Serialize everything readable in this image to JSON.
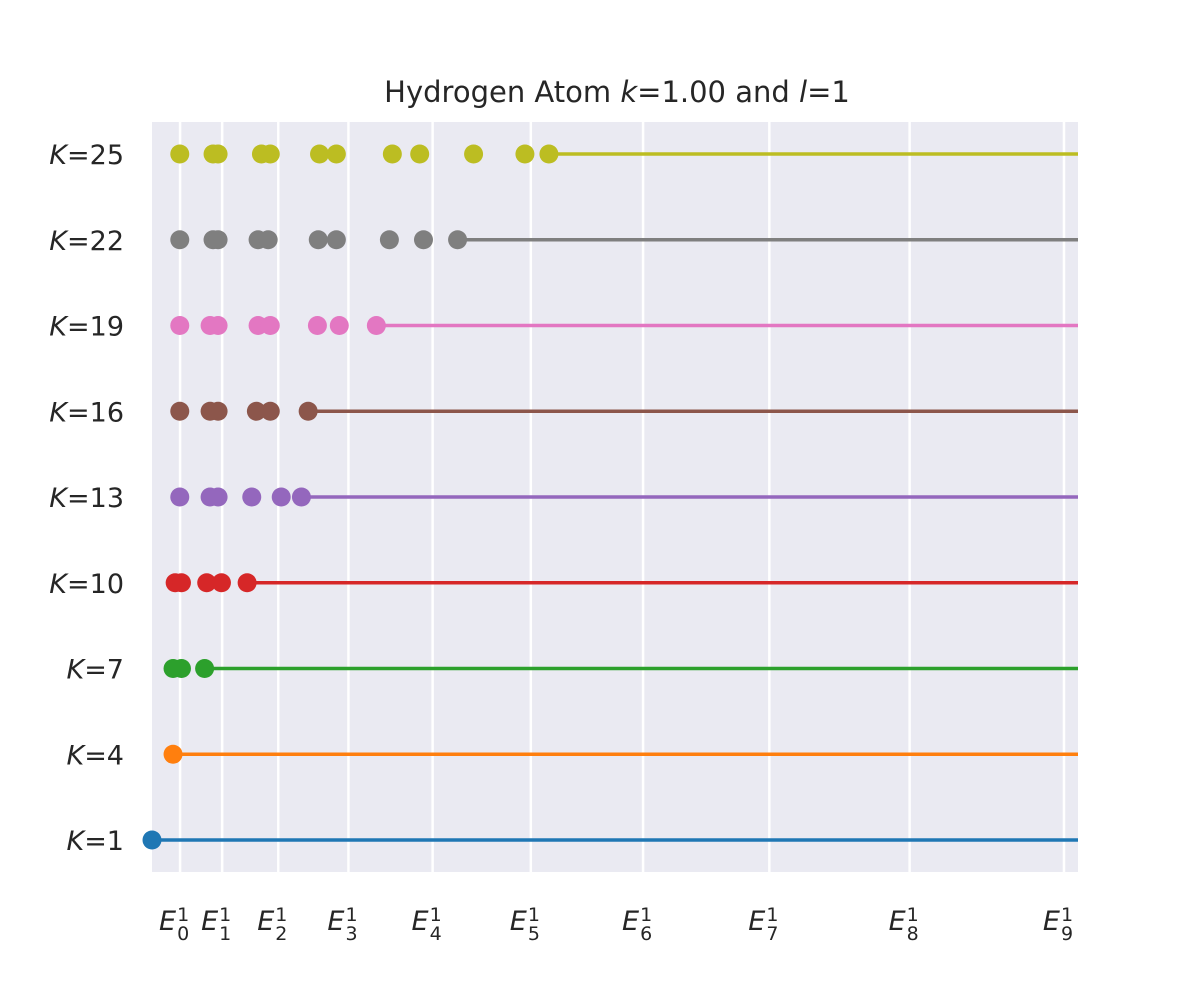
{
  "chart_data": {
    "type": "scatter",
    "title_parts": [
      "Hydrogen Atom ",
      "k",
      "=1.00 and ",
      "l",
      "=1"
    ],
    "xlabel": "",
    "ylabel": "",
    "grid": true,
    "x_ticks": [
      {
        "base": "E",
        "sub": "0",
        "sup": "1",
        "x": 0.0667
      },
      {
        "base": "E",
        "sub": "1",
        "sup": "1",
        "x": 0.1667
      },
      {
        "base": "E",
        "sub": "2",
        "sup": "1",
        "x": 0.3
      },
      {
        "base": "E",
        "sub": "3",
        "sup": "1",
        "x": 0.4667
      },
      {
        "base": "E",
        "sub": "4",
        "sup": "1",
        "x": 0.6667
      },
      {
        "base": "E",
        "sub": "5",
        "sup": "1",
        "x": 0.9
      },
      {
        "base": "E",
        "sub": "6",
        "sup": "1",
        "x": 1.1667
      },
      {
        "base": "E",
        "sub": "7",
        "sup": "1",
        "x": 1.4667
      },
      {
        "base": "E",
        "sub": "8",
        "sup": "1",
        "x": 1.8
      },
      {
        "base": "E",
        "sub": "9",
        "sup": "1",
        "x": 2.1667
      }
    ],
    "xlim": [
      0,
      2.2
    ],
    "series": [
      {
        "K_label": "K",
        "K_value": "=1",
        "color": "#1f77b4",
        "points": [
          0.0
        ]
      },
      {
        "K_label": "K",
        "K_value": "=4",
        "color": "#ff7f0e",
        "points": [
          0.05
        ]
      },
      {
        "K_label": "K",
        "K_value": "=7",
        "color": "#2ca02c",
        "points": [
          0.05,
          0.07,
          0.125
        ]
      },
      {
        "K_label": "K",
        "K_value": "=10",
        "color": "#d62728",
        "points": [
          0.055,
          0.07,
          0.13,
          0.165,
          0.226
        ]
      },
      {
        "K_label": "K",
        "K_value": "=13",
        "color": "#9467bd",
        "points": [
          0.066,
          0.138,
          0.157,
          0.237,
          0.307,
          0.355
        ]
      },
      {
        "K_label": "K",
        "K_value": "=16",
        "color": "#8c564b",
        "points": [
          0.066,
          0.138,
          0.157,
          0.248,
          0.281,
          0.371
        ]
      },
      {
        "K_label": "K",
        "K_value": "=19",
        "color": "#e377c2",
        "points": [
          0.066,
          0.138,
          0.157,
          0.252,
          0.281,
          0.393,
          0.445,
          0.533
        ]
      },
      {
        "K_label": "K",
        "K_value": "=22",
        "color": "#7f7f7f",
        "points": [
          0.066,
          0.145,
          0.157,
          0.252,
          0.276,
          0.395,
          0.438,
          0.564,
          0.645,
          0.726
        ]
      },
      {
        "K_label": "K",
        "K_value": "=25",
        "color": "#bcbd22",
        "points": [
          0.066,
          0.145,
          0.157,
          0.26,
          0.281,
          0.398,
          0.438,
          0.571,
          0.636,
          0.764,
          0.886,
          0.943
        ]
      }
    ]
  }
}
